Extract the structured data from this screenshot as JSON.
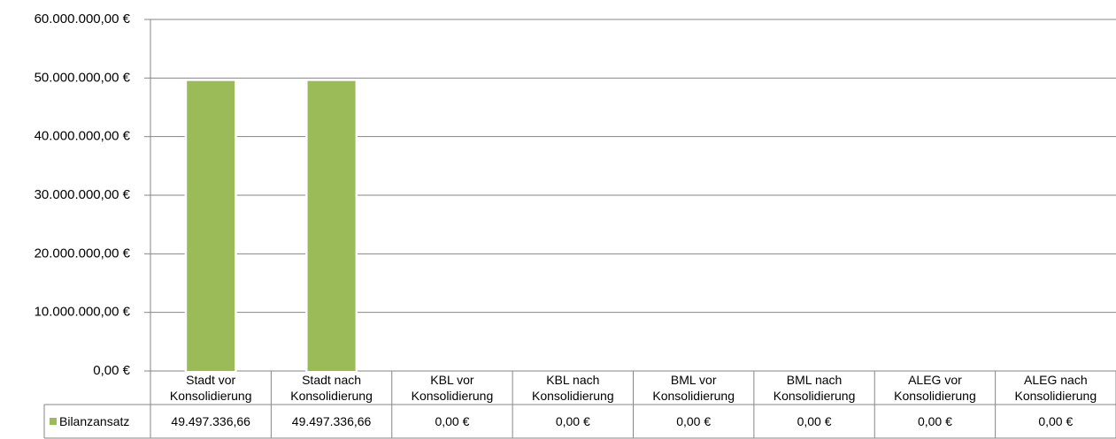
{
  "chart_data": {
    "type": "bar",
    "categories": [
      "Stadt vor Konsolidierung",
      "Stadt nach Konsolidierung",
      "KBL vor Konsolidierung",
      "KBL nach Konsolidierung",
      "BML vor Konsolidierung",
      "BML nach Konsolidierung",
      "ALEG vor Konsolidierung",
      "ALEG nach Konsolidierung"
    ],
    "series": [
      {
        "name": "Bilanzansatz",
        "color": "#9bbb59",
        "values": [
          49497336.66,
          49497336.66,
          0,
          0,
          0,
          0,
          0,
          0
        ],
        "value_labels": [
          "49.497.336,66",
          "49.497.336,66",
          "0,00 €",
          "0,00 €",
          "0,00 €",
          "0,00 €",
          "0,00 €",
          "0,00 €"
        ]
      }
    ],
    "ylim": [
      0,
      60000000
    ],
    "yticks": [
      {
        "value": 0,
        "label": "0,00 €"
      },
      {
        "value": 10000000,
        "label": "10.000.000,00 €"
      },
      {
        "value": 20000000,
        "label": "20.000.000,00 €"
      },
      {
        "value": 30000000,
        "label": "30.000.000,00 €"
      },
      {
        "value": 40000000,
        "label": "40.000.000,00 €"
      },
      {
        "value": 50000000,
        "label": "50.000.000,00 €"
      },
      {
        "value": 60000000,
        "label": "60.000.000,00 €"
      }
    ],
    "grid": true
  }
}
